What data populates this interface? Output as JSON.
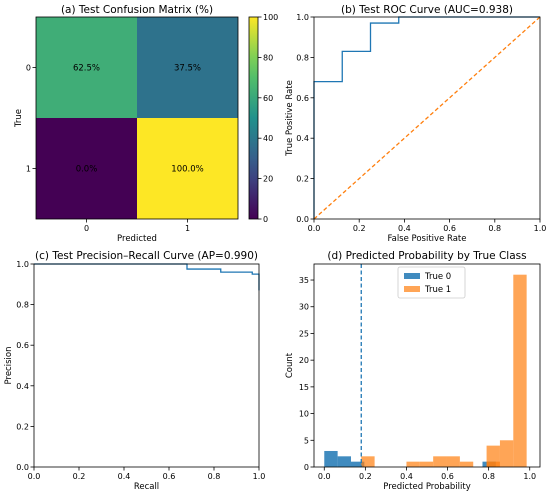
{
  "chart_data": [
    {
      "type": "heatmap",
      "title": "(a) Test Confusion Matrix (%)",
      "xlabel": "Predicted",
      "ylabel": "True",
      "x_categories": [
        "0",
        "1"
      ],
      "y_categories": [
        "0",
        "1"
      ],
      "values": [
        [
          62.5,
          37.5
        ],
        [
          0.0,
          100.0
        ]
      ],
      "cell_labels": [
        [
          "62.5%",
          "37.5%"
        ],
        [
          "0.0%",
          "100.0%"
        ]
      ],
      "colorbar": {
        "range": [
          0,
          100
        ],
        "ticks": [
          "0",
          "20",
          "40",
          "60",
          "80",
          "100"
        ],
        "colormap": "viridis"
      }
    },
    {
      "type": "line",
      "title": "(b) Test ROC Curve (AUC=0.938)",
      "xlabel": "False Positive Rate",
      "ylabel": "True Positive Rate",
      "xlim": [
        0,
        1
      ],
      "ylim": [
        0,
        1
      ],
      "xticks": [
        "0.0",
        "0.2",
        "0.4",
        "0.6",
        "0.8",
        "1.0"
      ],
      "yticks": [
        "0.0",
        "0.2",
        "0.4",
        "0.6",
        "0.8",
        "1.0"
      ],
      "series": [
        {
          "color": "#1f77b4",
          "style": "solid",
          "step": true,
          "x": [
            0,
            0,
            0.125,
            0.125,
            0.25,
            0.25,
            0.375,
            0.375,
            1.0
          ],
          "y": [
            0,
            0.68,
            0.68,
            0.83,
            0.83,
            0.97,
            0.97,
            1.0,
            1.0
          ]
        },
        {
          "color": "#ff7f0e",
          "style": "dashed",
          "x": [
            0,
            1
          ],
          "y": [
            0,
            1
          ]
        }
      ]
    },
    {
      "type": "line",
      "title": "(c) Test Precision–Recall Curve (AP=0.990)",
      "xlabel": "Recall",
      "ylabel": "Precision",
      "xlim": [
        0,
        1
      ],
      "ylim": [
        0,
        1
      ],
      "xticks": [
        "0.0",
        "0.2",
        "0.4",
        "0.6",
        "0.8",
        "1.0"
      ],
      "yticks": [
        "0.0",
        "0.2",
        "0.4",
        "0.6",
        "0.8",
        "1.0"
      ],
      "series": [
        {
          "color": "#1f77b4",
          "style": "solid",
          "step": true,
          "x": [
            0.0,
            0.68,
            0.68,
            0.83,
            0.83,
            0.97,
            0.97,
            1.0,
            1.0
          ],
          "y": [
            1.0,
            1.0,
            0.975,
            0.975,
            0.96,
            0.96,
            0.95,
            0.95,
            0.87
          ]
        }
      ]
    },
    {
      "type": "bar",
      "title": "(d) Predicted Probability by True Class",
      "xlabel": "Predicted Probability",
      "ylabel": "Count",
      "xlim": [
        -0.05,
        1.05
      ],
      "ylim": [
        0,
        38
      ],
      "xticks": [
        "0.0",
        "0.2",
        "0.4",
        "0.6",
        "0.8",
        "1.0"
      ],
      "yticks": [
        "0",
        "5",
        "10",
        "15",
        "20",
        "25",
        "30",
        "35"
      ],
      "legend": {
        "position": "top-center"
      },
      "threshold": {
        "x": 0.18,
        "color": "#1f77b4",
        "style": "dashed"
      },
      "series": [
        {
          "name": "True 0",
          "color": "#1f77b4",
          "opacity": 0.85,
          "bin_width": 0.065,
          "bins": [
            [
              0.0,
              3
            ],
            [
              0.065,
              2
            ],
            [
              0.13,
              1
            ],
            [
              0.77,
              1
            ]
          ]
        },
        {
          "name": "True 1",
          "color": "#ff7f0e",
          "opacity": 0.7,
          "bin_width": 0.065,
          "bins": [
            [
              0.18,
              2
            ],
            [
              0.4,
              1
            ],
            [
              0.465,
              1
            ],
            [
              0.53,
              2
            ],
            [
              0.595,
              2
            ],
            [
              0.66,
              1
            ],
            [
              0.79,
              1
            ],
            [
              0.79,
              4
            ],
            [
              0.855,
              5
            ],
            [
              0.92,
              36
            ]
          ]
        }
      ]
    }
  ]
}
